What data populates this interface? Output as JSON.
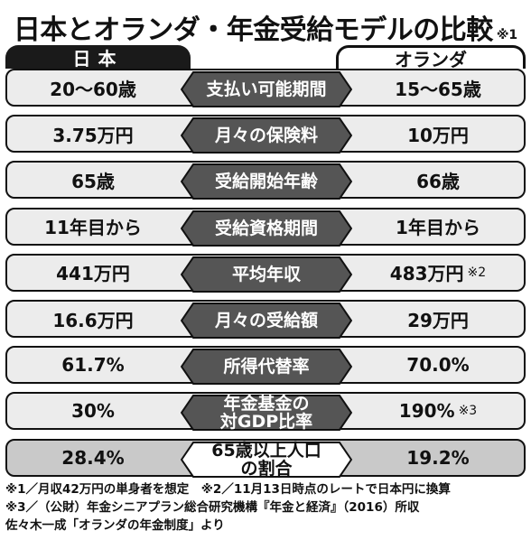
{
  "title": "日本とオランダ・年金受給モデルの比較",
  "title_note": "※1",
  "tabs": {
    "japan": "日本",
    "netherlands": "オランダ"
  },
  "rows": [
    {
      "label": "支払い可能期間",
      "japan": "20〜60歳",
      "netherlands": "15〜65歳"
    },
    {
      "label": "月々の保険料",
      "japan": "3.75万円",
      "netherlands": "10万円"
    },
    {
      "label": "受給開始年齢",
      "japan": "65歳",
      "netherlands": "66歳"
    },
    {
      "label": "受給資格期間",
      "japan": "11年目から",
      "netherlands": "1年目から"
    },
    {
      "label": "平均年収",
      "japan": "441万円",
      "netherlands": "483万円",
      "netherlands_note": "※2"
    },
    {
      "label": "月々の受給額",
      "japan": "16.6万円",
      "netherlands": "29万円"
    },
    {
      "label": "所得代替率",
      "japan": "61.7%",
      "netherlands": "70.0%"
    },
    {
      "label": "年金基金の\n対GDP比率",
      "japan": "30%",
      "netherlands": "190%",
      "netherlands_note": "※3"
    },
    {
      "label": "65歳以上人口\nの割合",
      "japan": "28.4%",
      "netherlands": "19.2%"
    }
  ],
  "notes": [
    "※1／月収42万円の単身者を想定　※2／11月13日時点のレートで日本円に換算",
    "※3／（公財）年金シニアプラン総合研究機構『年金と経済』（2016）所収",
    "佐々木一成「オランダの年金制度」より"
  ]
}
